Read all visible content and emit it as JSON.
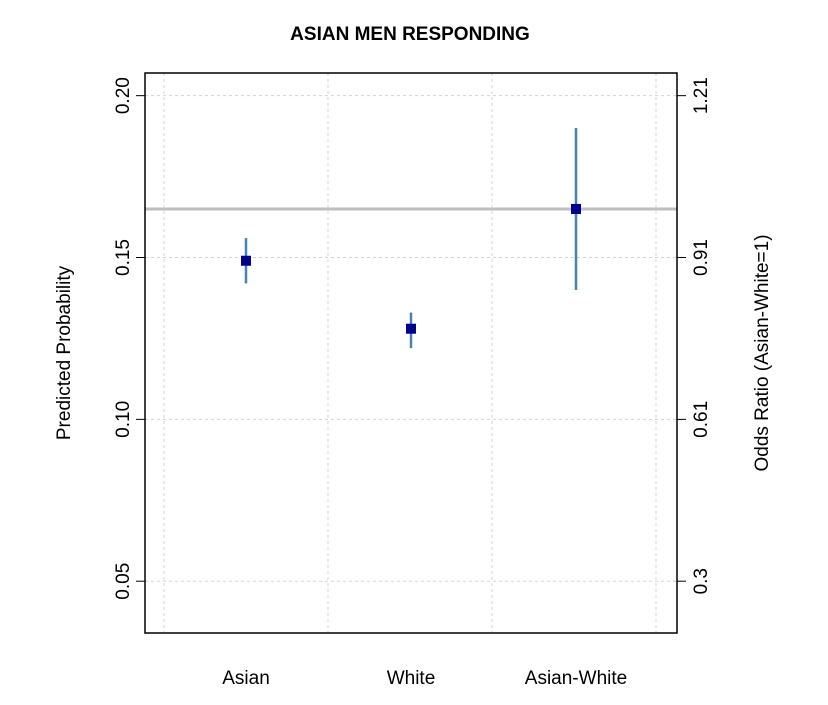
{
  "chart_data": {
    "type": "scatter",
    "title": "ASIAN MEN RESPONDING",
    "xlabel": "",
    "ylabel": "Predicted Probability",
    "y2label": "Odds Ratio (Asian-White=1)",
    "categories": [
      "Asian",
      "White",
      "Asian-White"
    ],
    "values": [
      0.149,
      0.128,
      0.165
    ],
    "lower": [
      0.142,
      0.122,
      0.14
    ],
    "upper": [
      0.156,
      0.133,
      0.19
    ],
    "ylim": [
      0.034,
      0.207
    ],
    "yticks": [
      0.05,
      0.1,
      0.15,
      0.2
    ],
    "ytick_labels": [
      "0.05",
      "0.10",
      "0.15",
      "0.20"
    ],
    "y2ticks": [
      0.05,
      0.1,
      0.15,
      0.2
    ],
    "y2tick_labels": [
      "0.3",
      "0.61",
      "0.91",
      "1.21"
    ],
    "reference_line": 0.165,
    "grid": true,
    "colors": {
      "point": "#00008b",
      "interval": "#4682b4",
      "reference": "#bebebe",
      "grid": "#d3d3d3"
    }
  }
}
